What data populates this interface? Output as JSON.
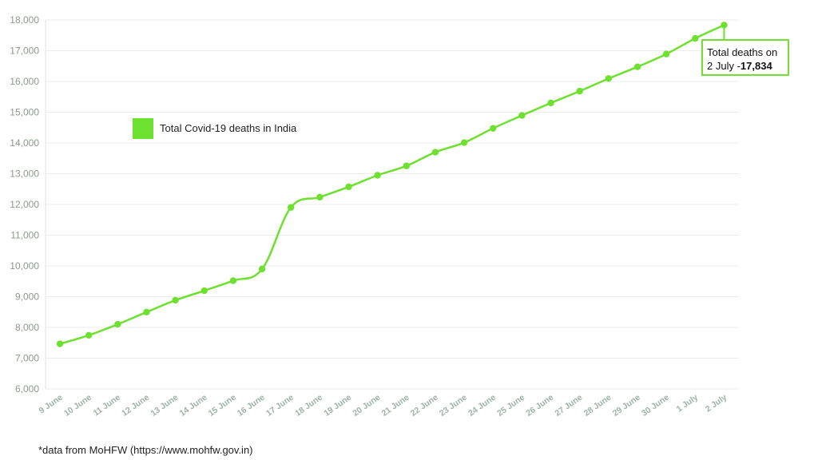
{
  "chart_data": {
    "type": "line",
    "categories": [
      "9 June",
      "10 June",
      "11 June",
      "12 June",
      "13 June",
      "14 June",
      "15 June",
      "16 June",
      "17 June",
      "18 June",
      "19 June",
      "20 June",
      "21 June",
      "22 June",
      "23 June",
      "24 June",
      "25 June",
      "26 June",
      "27 June",
      "28 June",
      "29 June",
      "30 June",
      "1 July",
      "2 July"
    ],
    "series": [
      {
        "name": "Total Covid-19 deaths in India",
        "values": [
          7466,
          7745,
          8102,
          8498,
          8884,
          9195,
          9520,
          9900,
          11903,
          12237,
          12573,
          12948,
          13254,
          13699,
          14011,
          14476,
          14894,
          15301,
          15685,
          16095,
          16475,
          16893,
          17400,
          17834
        ]
      }
    ],
    "ylim": [
      6000,
      18000
    ],
    "yticks": [
      "6,000",
      "7,000",
      "8,000",
      "9,000",
      "10,000",
      "11,000",
      "12,000",
      "13,000",
      "14,000",
      "15,000",
      "16,000",
      "17,000",
      "18,000"
    ],
    "grid": true,
    "legend_position": "upper-left",
    "line_color": "#6ee02f",
    "annotation": {
      "line1": "Total deaths on",
      "line2_prefix": "2 July -",
      "line2_value": "17,834"
    }
  },
  "footnote": "*data from MoHFW (https://www.mohfw.gov.in)"
}
